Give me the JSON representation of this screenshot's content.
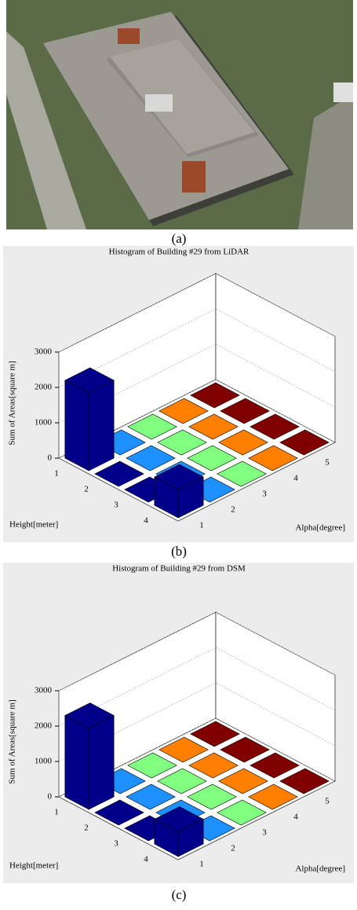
{
  "photo_caption": "(a)",
  "chart_data": [
    {
      "type": "bar3d",
      "caption": "(b)",
      "title": "Histogram of Building #29 from LiDAR",
      "zlabel": "Sum of Areas[square m]",
      "xlabel": "Height[meter]",
      "ylabel": "Alpha[degree]",
      "x_categories": [
        "1",
        "2",
        "3",
        "4"
      ],
      "y_categories": [
        "1",
        "2",
        "3",
        "4",
        "5"
      ],
      "values": [
        [
          2200,
          0,
          0,
          0,
          0
        ],
        [
          0,
          0,
          0,
          0,
          0
        ],
        [
          0,
          0,
          0,
          0,
          0
        ],
        [
          800,
          0,
          0,
          0,
          0
        ]
      ],
      "colors": [
        "#00008b",
        "#1e90ff",
        "#80ff80",
        "#ff8000",
        "#800000"
      ],
      "zlim": [
        0,
        3000
      ],
      "zticks": [
        0,
        1000,
        2000,
        3000
      ],
      "grid": true
    },
    {
      "type": "bar3d",
      "caption": "(c)",
      "title": "Histogram of Building #29 from DSM",
      "zlabel": "Sum of Areas[square m]",
      "xlabel": "Height[meter]",
      "ylabel": "Alpha[degree]",
      "x_categories": [
        "1",
        "2",
        "3",
        "4"
      ],
      "y_categories": [
        "1",
        "2",
        "3",
        "4",
        "5"
      ],
      "values": [
        [
          2300,
          0,
          0,
          0,
          0
        ],
        [
          0,
          0,
          0,
          0,
          0
        ],
        [
          0,
          0,
          0,
          0,
          0
        ],
        [
          700,
          0,
          0,
          0,
          0
        ]
      ],
      "colors": [
        "#00008b",
        "#1e90ff",
        "#80ff80",
        "#ff8000",
        "#800000"
      ],
      "zlim": [
        0,
        3000
      ],
      "zticks": [
        0,
        1000,
        2000,
        3000
      ],
      "grid": true
    }
  ]
}
